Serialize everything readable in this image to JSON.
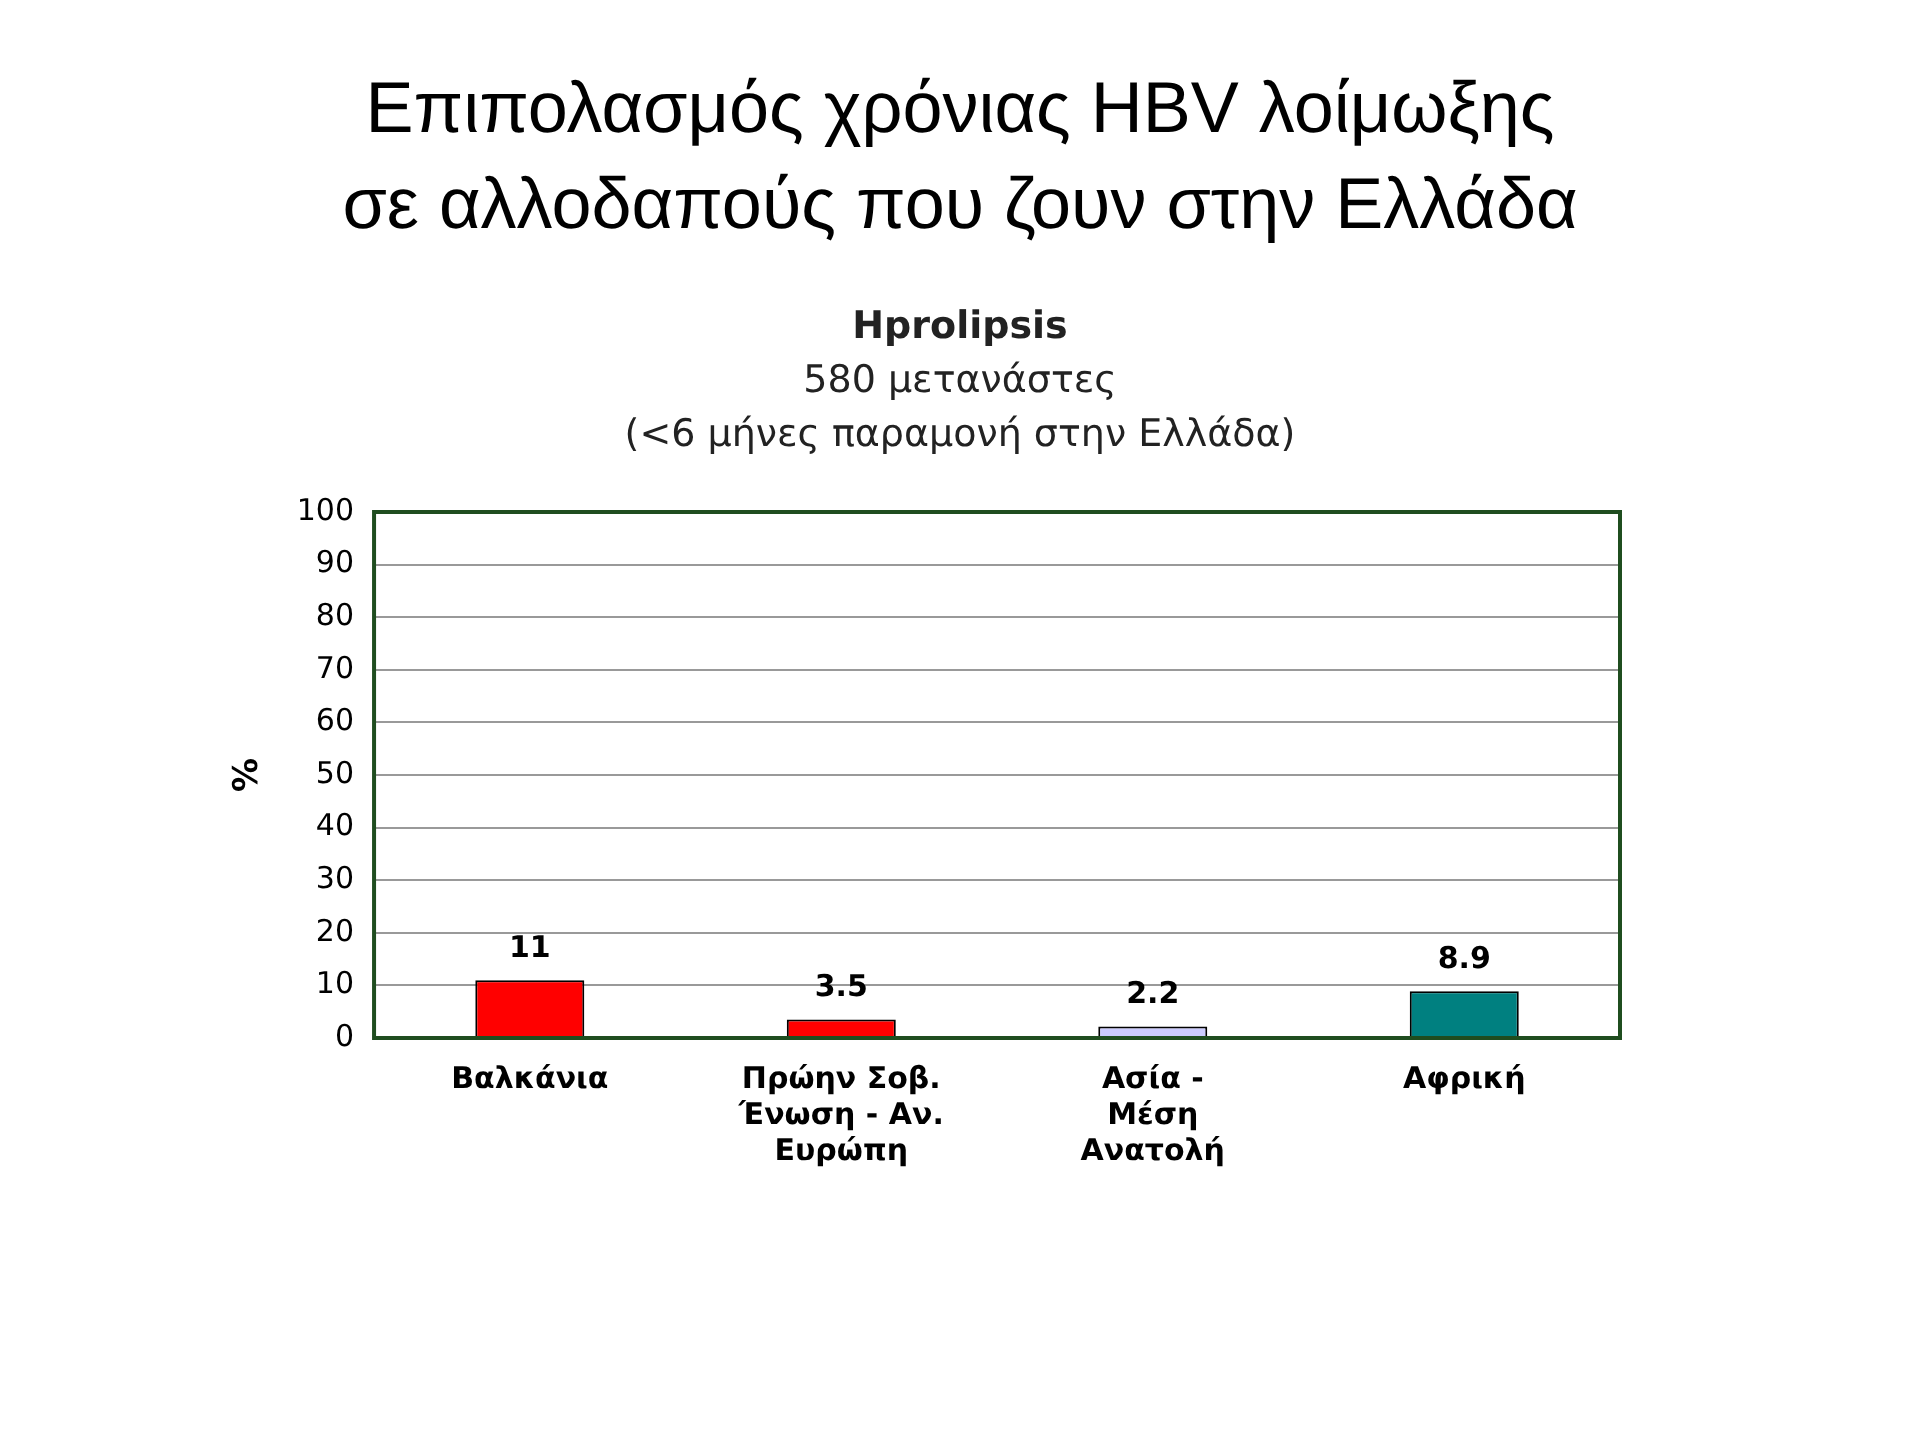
{
  "chart_data": {
    "type": "bar",
    "title": "Επιπολασμός χρόνιας HBV λοίμωξης\nσε αλλοδαπούς που ζουν στην Ελλάδα",
    "subtitle": "Hprolipsis\n580 μετανάστες\n(<6 μήνες παραμονή στην Ελλάδα)",
    "ylabel": "%",
    "categories": [
      "Βαλκάνια",
      "Πρώην Σοβ.\nΈνωση - Αν.\nΕυρώπη",
      "Ασία -\nΜέση\nΑνατολή",
      "Αφρική"
    ],
    "values": [
      11,
      3.5,
      2.2,
      8.9
    ],
    "colors": [
      "#ff0000",
      "#ff0000",
      "#ccccff",
      "#008080"
    ],
    "ylim": [
      0,
      100
    ],
    "yticks": [
      0,
      10,
      20,
      30,
      40,
      50,
      60,
      70,
      80,
      90,
      100
    ],
    "grid": "y",
    "data_labels": true
  }
}
